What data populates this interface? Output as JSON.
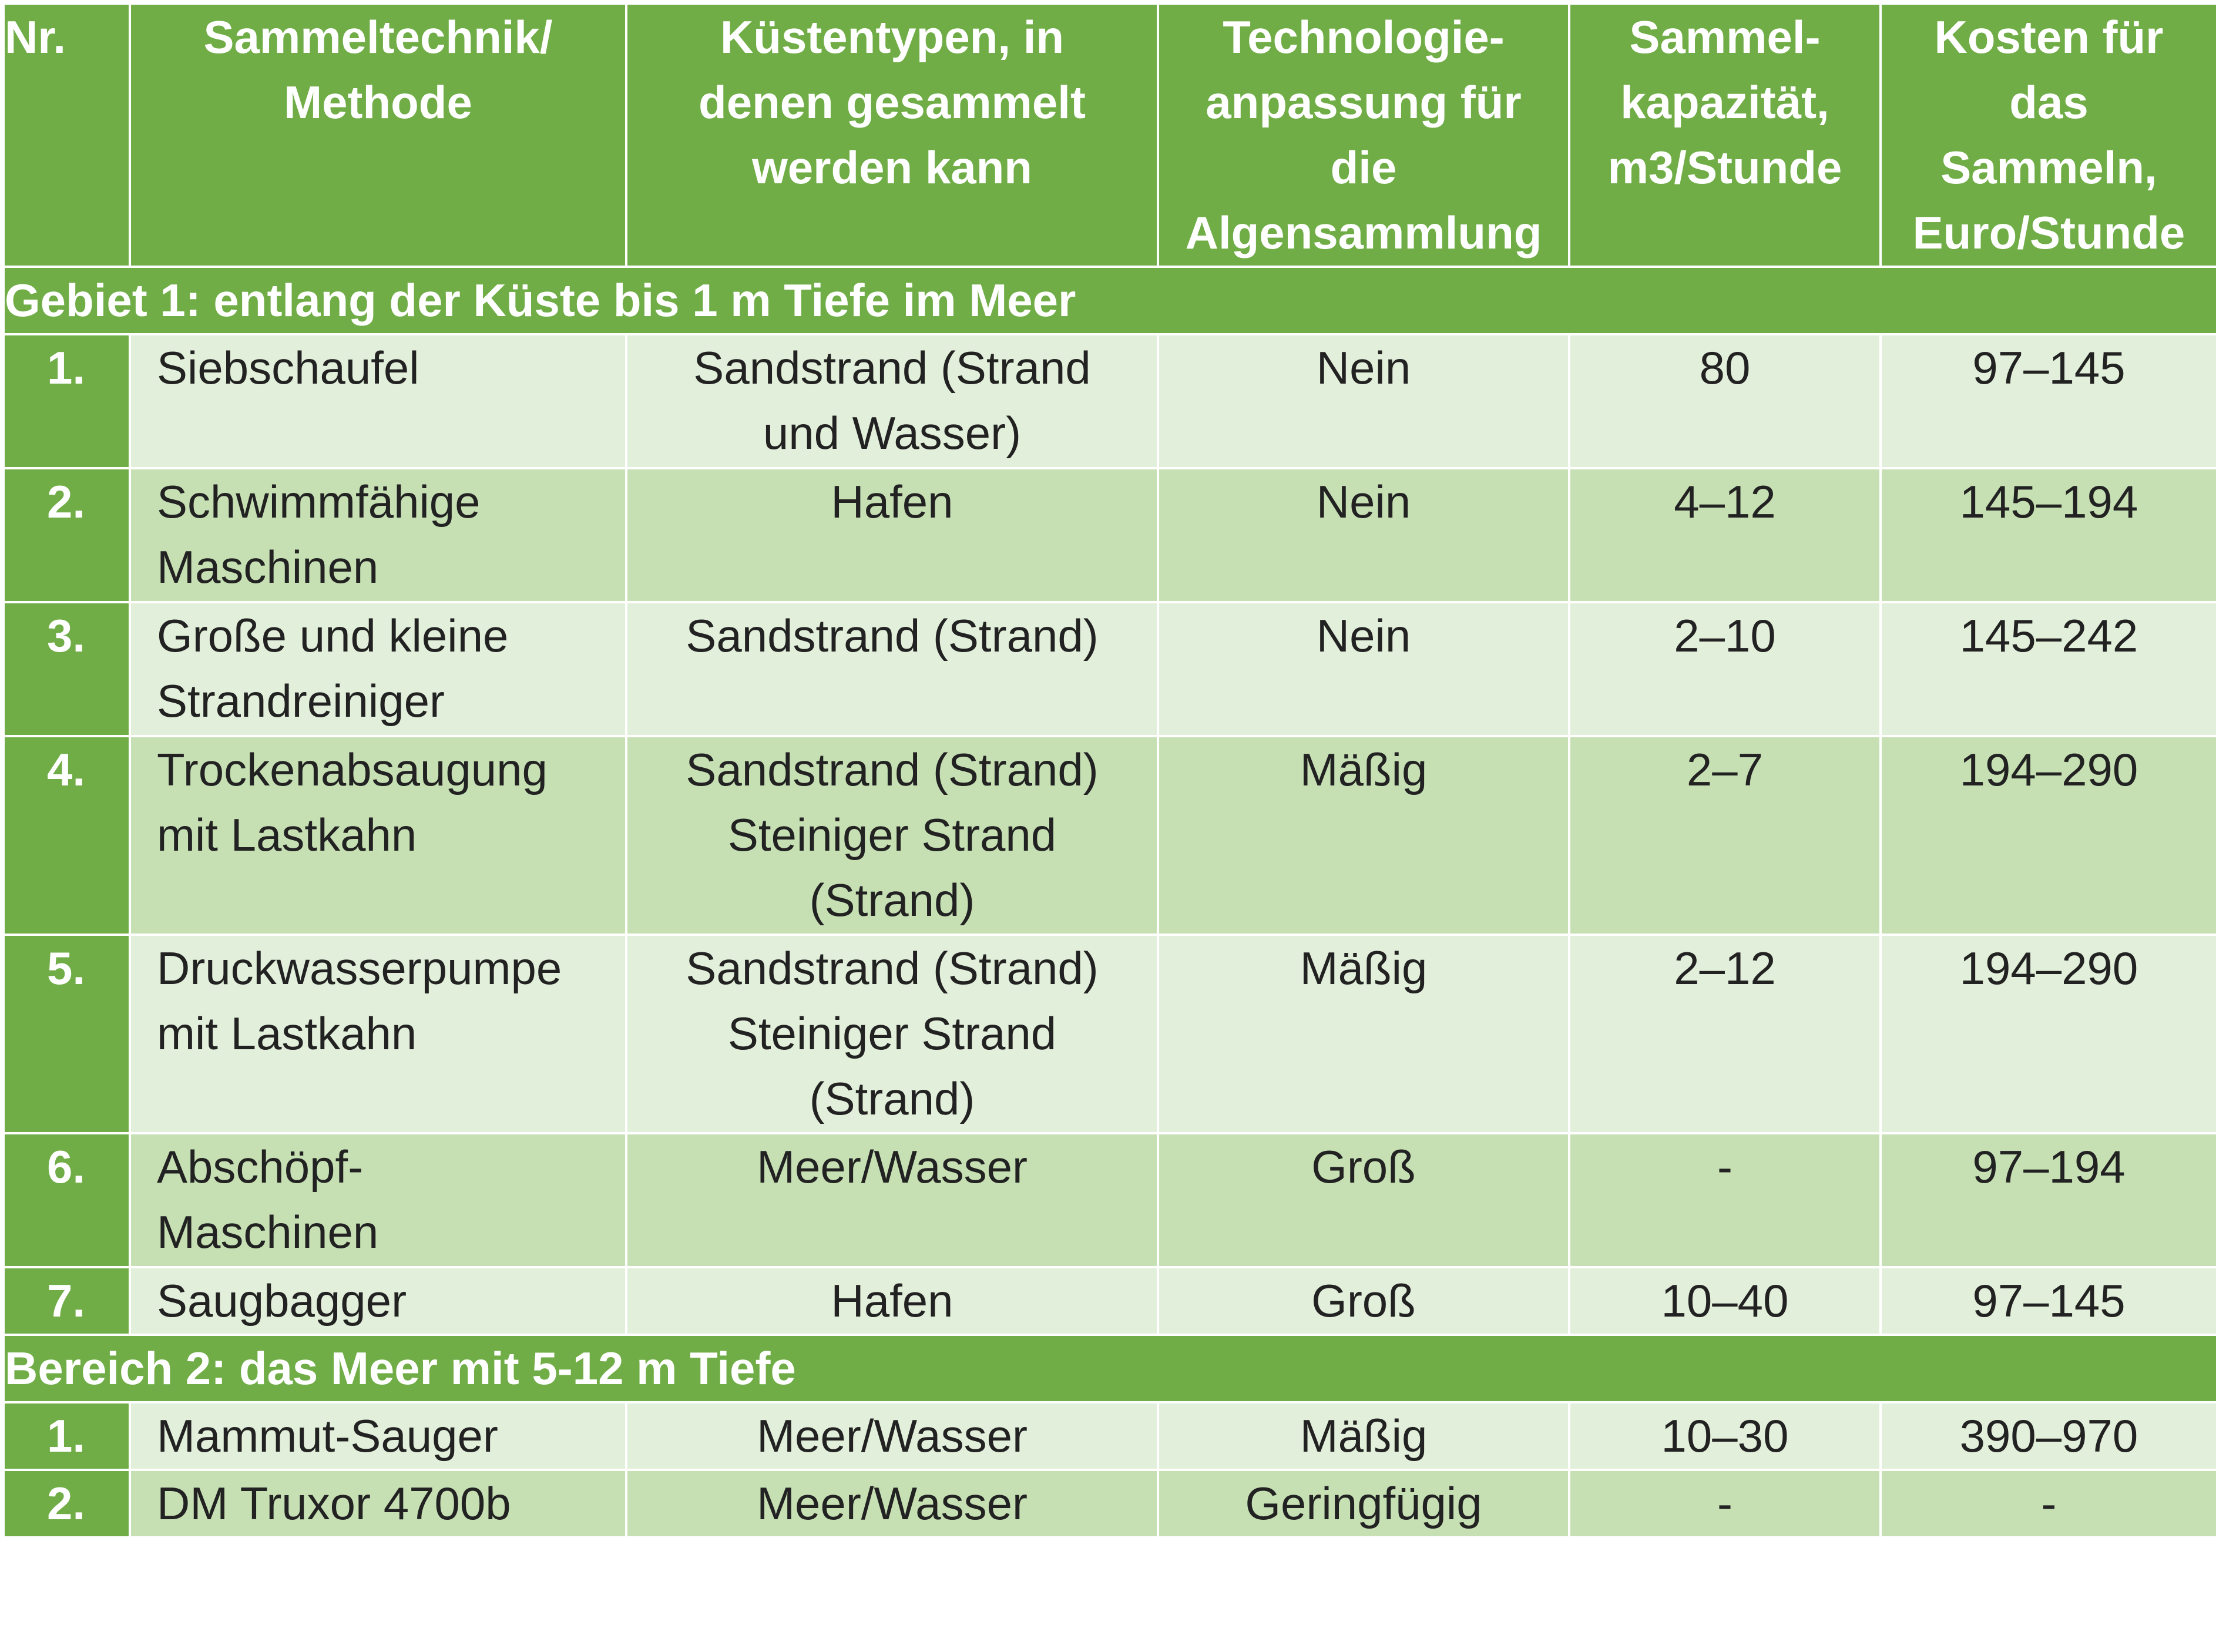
{
  "header": {
    "nr": "Nr.",
    "method": [
      "Sammeltechnik/",
      "Methode"
    ],
    "coast": [
      "Küstentypen, in",
      "denen gesammelt",
      "werden kann"
    ],
    "tech": [
      "Technologie-",
      "anpassung für",
      "die",
      "Algensammlung"
    ],
    "capacity": [
      "Sammel-",
      "kapazität,",
      "m3/Stunde"
    ],
    "cost": [
      "Kosten für",
      "das",
      "Sammeln,",
      "Euro/Stunde"
    ]
  },
  "sections": [
    {
      "title": "Gebiet 1: entlang der Küste bis 1 m Tiefe im Meer",
      "rows": [
        {
          "nr": "1.",
          "method": [
            "Siebschaufel"
          ],
          "coast": [
            "Sandstrand (Strand",
            "und Wasser)"
          ],
          "tech": "Nein",
          "capacity": "80",
          "cost": "97–145",
          "shade": "light",
          "lines": 2
        },
        {
          "nr": "2.",
          "method": [
            "Schwimmfähige",
            "Maschinen"
          ],
          "coast": [
            "Hafen"
          ],
          "tech": "Nein",
          "capacity": "4–12",
          "cost": "145–194",
          "shade": "mid",
          "lines": 2
        },
        {
          "nr": "3.",
          "method": [
            "Große und kleine",
            "Strandreiniger"
          ],
          "coast": [
            "Sandstrand (Strand)"
          ],
          "tech": "Nein",
          "capacity": "2–10",
          "cost": "145–242",
          "shade": "light",
          "lines": 2
        },
        {
          "nr": "4.",
          "method": [
            "Trockenabsaugung",
            "mit Lastkahn"
          ],
          "coast": [
            "Sandstrand (Strand)",
            "Steiniger Strand",
            "(Strand)"
          ],
          "tech": "Mäßig",
          "capacity": "2–7",
          "cost": "194–290",
          "shade": "mid",
          "lines": 3
        },
        {
          "nr": "5.",
          "method": [
            "Druckwasserpumpe",
            "mit Lastkahn"
          ],
          "coast": [
            "Sandstrand (Strand)",
            "Steiniger Strand",
            "(Strand)"
          ],
          "tech": "Mäßig",
          "capacity": "2–12",
          "cost": "194–290",
          "shade": "light",
          "lines": 3
        },
        {
          "nr": "6.",
          "method": [
            "Abschöpf-",
            "Maschinen"
          ],
          "coast": [
            "Meer/Wasser"
          ],
          "tech": "Groß",
          "capacity": "-",
          "cost": "97–194",
          "shade": "mid",
          "lines": 2
        },
        {
          "nr": "7.",
          "method": [
            "Saugbagger"
          ],
          "coast": [
            "Hafen"
          ],
          "tech": "Groß",
          "capacity": "10–40",
          "cost": "97–145",
          "shade": "light",
          "lines": 1
        }
      ]
    },
    {
      "title": "Bereich 2: das Meer mit 5-12 m Tiefe",
      "rows": [
        {
          "nr": "1.",
          "method": [
            "Mammut-Sauger"
          ],
          "coast": [
            "Meer/Wasser"
          ],
          "tech": "Mäßig",
          "capacity": "10–30",
          "cost": "390–970",
          "shade": "light",
          "lines": 1
        },
        {
          "nr": "2.",
          "method": [
            "DM Truxor 4700b"
          ],
          "coast": [
            "Meer/Wasser"
          ],
          "tech": "Geringfügig",
          "capacity": "-",
          "cost": "-",
          "shade": "mid",
          "lines": 1
        }
      ]
    }
  ]
}
